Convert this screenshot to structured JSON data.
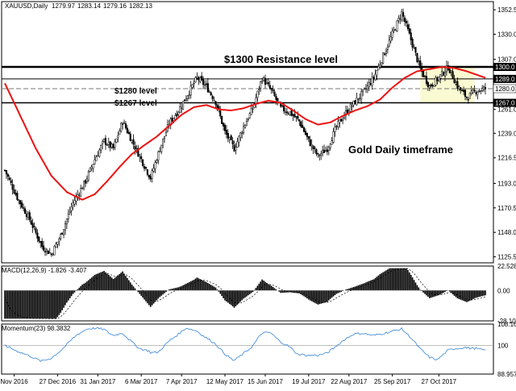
{
  "chart_data": {
    "type": "candlestick",
    "header": {
      "symbol": "XAUUSD,Daily",
      "ohlc": [
        "1279.97",
        "1283.14",
        "1279.16",
        "1282.13"
      ]
    },
    "price_axis": {
      "ticks": [
        "1352.5",
        "1330.0",
        "1307.0",
        "1289.0",
        "1261.0",
        "1239.0",
        "1216.5",
        "1193.0",
        "1170.5",
        "1148.0",
        "1125.5"
      ],
      "ylim": [
        1120,
        1360
      ],
      "current_price_label": "1280.0",
      "current_price": 1280.0
    },
    "levels": [
      {
        "name": "resistance_1300",
        "price": 1300.0,
        "label": "1300.0",
        "color": "#000000"
      },
      {
        "name": "level_1289",
        "price": 1289.0,
        "label": "1289.0",
        "color": "#000000"
      },
      {
        "name": "level_1267",
        "price": 1267.0,
        "label": "1267.0",
        "color": "#000000"
      }
    ],
    "annotations": [
      {
        "text": "$1300 Resistance level"
      },
      {
        "text": "$1280 level"
      },
      {
        "text": "$1267 level"
      },
      {
        "text": "Gold Daily timeframe"
      }
    ],
    "moving_average_color": "#ee1111",
    "highlight_box": {
      "from_date": "Sep 2017",
      "to_date": "Oct 2017",
      "price_from": 1267,
      "price_to": 1300,
      "color": "#fafad2"
    },
    "x_axis": {
      "labels": [
        "Nov 2016",
        "27 Dec 2016",
        "31 Jan 2017",
        "6 Mar 2017",
        "7 Apr 2017",
        "12 May 2017",
        "15 Jun 2017",
        "19 Jul 2017",
        "22 Aug 2017",
        "25 Sep 2017",
        "27 Oct 2017"
      ]
    },
    "price_series": {
      "note_units": "USD per ounce, daily closes by approximate date index",
      "anchors": [
        {
          "i": 0,
          "p": 1205
        },
        {
          "i": 8,
          "p": 1180
        },
        {
          "i": 16,
          "p": 1160
        },
        {
          "i": 24,
          "p": 1135
        },
        {
          "i": 30,
          "p": 1128
        },
        {
          "i": 36,
          "p": 1145
        },
        {
          "i": 44,
          "p": 1175
        },
        {
          "i": 52,
          "p": 1195
        },
        {
          "i": 58,
          "p": 1215
        },
        {
          "i": 64,
          "p": 1232
        },
        {
          "i": 70,
          "p": 1225
        },
        {
          "i": 76,
          "p": 1250
        },
        {
          "i": 82,
          "p": 1232
        },
        {
          "i": 88,
          "p": 1215
        },
        {
          "i": 94,
          "p": 1198
        },
        {
          "i": 100,
          "p": 1225
        },
        {
          "i": 106,
          "p": 1248
        },
        {
          "i": 112,
          "p": 1260
        },
        {
          "i": 118,
          "p": 1275
        },
        {
          "i": 124,
          "p": 1290
        },
        {
          "i": 130,
          "p": 1282
        },
        {
          "i": 136,
          "p": 1268
        },
        {
          "i": 142,
          "p": 1240
        },
        {
          "i": 148,
          "p": 1225
        },
        {
          "i": 154,
          "p": 1245
        },
        {
          "i": 160,
          "p": 1262
        },
        {
          "i": 166,
          "p": 1290
        },
        {
          "i": 172,
          "p": 1278
        },
        {
          "i": 178,
          "p": 1262
        },
        {
          "i": 184,
          "p": 1258
        },
        {
          "i": 190,
          "p": 1250
        },
        {
          "i": 196,
          "p": 1232
        },
        {
          "i": 202,
          "p": 1218
        },
        {
          "i": 208,
          "p": 1225
        },
        {
          "i": 214,
          "p": 1245
        },
        {
          "i": 220,
          "p": 1258
        },
        {
          "i": 226,
          "p": 1268
        },
        {
          "i": 232,
          "p": 1278
        },
        {
          "i": 238,
          "p": 1290
        },
        {
          "i": 244,
          "p": 1310
        },
        {
          "i": 250,
          "p": 1330
        },
        {
          "i": 256,
          "p": 1350
        },
        {
          "i": 262,
          "p": 1325
        },
        {
          "i": 268,
          "p": 1298
        },
        {
          "i": 274,
          "p": 1282
        },
        {
          "i": 280,
          "p": 1290
        },
        {
          "i": 286,
          "p": 1300
        },
        {
          "i": 292,
          "p": 1282
        },
        {
          "i": 298,
          "p": 1272
        },
        {
          "i": 304,
          "p": 1278
        },
        {
          "i": 310,
          "p": 1280
        }
      ],
      "ma_anchors": [
        {
          "i": 0,
          "p": 1285
        },
        {
          "i": 10,
          "p": 1255
        },
        {
          "i": 20,
          "p": 1225
        },
        {
          "i": 30,
          "p": 1200
        },
        {
          "i": 40,
          "p": 1185
        },
        {
          "i": 50,
          "p": 1178
        },
        {
          "i": 58,
          "p": 1183
        },
        {
          "i": 66,
          "p": 1195
        },
        {
          "i": 74,
          "p": 1208
        },
        {
          "i": 82,
          "p": 1220
        },
        {
          "i": 90,
          "p": 1228
        },
        {
          "i": 98,
          "p": 1236
        },
        {
          "i": 106,
          "p": 1246
        },
        {
          "i": 114,
          "p": 1256
        },
        {
          "i": 122,
          "p": 1263
        },
        {
          "i": 130,
          "p": 1265
        },
        {
          "i": 138,
          "p": 1261
        },
        {
          "i": 146,
          "p": 1260
        },
        {
          "i": 154,
          "p": 1262
        },
        {
          "i": 162,
          "p": 1266
        },
        {
          "i": 170,
          "p": 1269
        },
        {
          "i": 178,
          "p": 1267
        },
        {
          "i": 186,
          "p": 1260
        },
        {
          "i": 194,
          "p": 1252
        },
        {
          "i": 202,
          "p": 1247
        },
        {
          "i": 210,
          "p": 1249
        },
        {
          "i": 218,
          "p": 1255
        },
        {
          "i": 226,
          "p": 1260
        },
        {
          "i": 234,
          "p": 1264
        },
        {
          "i": 242,
          "p": 1270
        },
        {
          "i": 250,
          "p": 1281
        },
        {
          "i": 258,
          "p": 1290
        },
        {
          "i": 266,
          "p": 1296
        },
        {
          "i": 274,
          "p": 1298
        },
        {
          "i": 282,
          "p": 1300
        },
        {
          "i": 290,
          "p": 1299
        },
        {
          "i": 298,
          "p": 1296
        },
        {
          "i": 306,
          "p": 1292
        },
        {
          "i": 310,
          "p": 1290
        }
      ]
    },
    "macd": {
      "label": "MACD(12,26,9) -1.826 -3.407",
      "ticks": [
        "22.5284",
        "0.00",
        "-28.1068"
      ],
      "ylim": [
        -28.1068,
        22.5284
      ],
      "color_hist": "#000000",
      "color_signal": "#000000"
    },
    "momentum": {
      "label": "Momentum(23) 98.3832",
      "ticks": [
        "108.1663",
        "100",
        "88.9570"
      ],
      "ylim": [
        88.957,
        108.1663
      ],
      "reference": 100,
      "color": "#4a90d9"
    }
  }
}
